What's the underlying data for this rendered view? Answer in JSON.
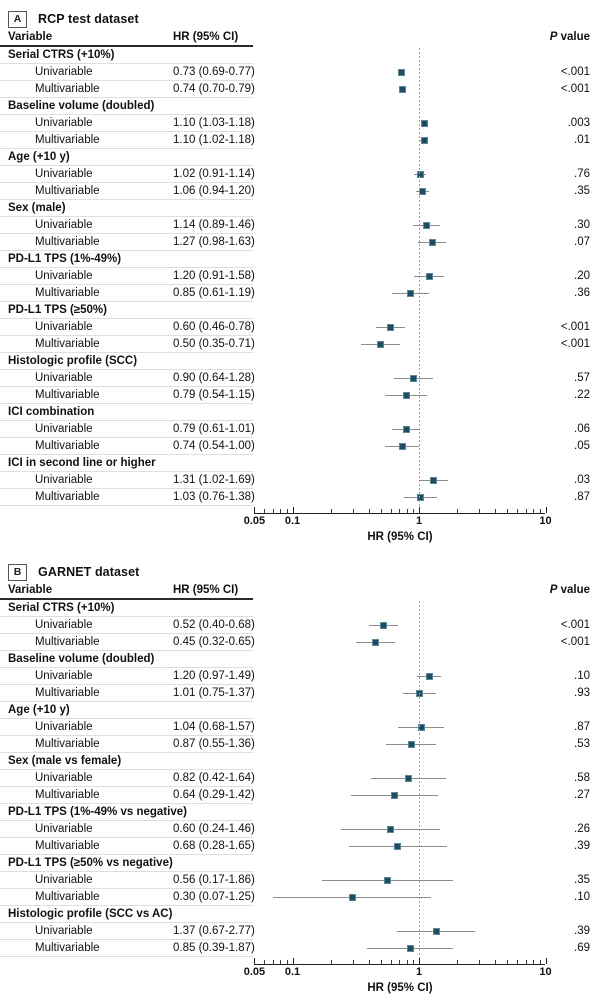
{
  "colors": {
    "marker_fill": "#1d4d60",
    "marker_border": "#5d8799",
    "ci_line": "#8c8c8c",
    "reference_line": "#9a9a9a",
    "header_rule": "#2a2a2a",
    "row_rule": "#dedede"
  },
  "chart_data": [
    {
      "type": "scatter",
      "subtype": "forest-plot",
      "panel_letter": "A",
      "title": "RCP test dataset",
      "columns": {
        "variable": "Variable",
        "hr": "HR (95% CI)",
        "p_italic": "P",
        "p_rest": " value"
      },
      "xlabel": "HR (95% CI)",
      "x_scale": "log",
      "xlim": [
        0.05,
        10
      ],
      "x_ticks": [
        0.05,
        0.1,
        1,
        10
      ],
      "x_tick_labels": [
        "0.05",
        "0.1",
        "1",
        "10"
      ],
      "reference_line": 1,
      "groups": [
        {
          "name": "Serial CTRS (+10%)",
          "rows": [
            {
              "label": "Univariable",
              "hr_text": "0.73 (0.69-0.77)",
              "hr": 0.73,
              "lo": 0.69,
              "hi": 0.77,
              "p": "<.001"
            },
            {
              "label": "Multivariable",
              "hr_text": "0.74 (0.70-0.79)",
              "hr": 0.74,
              "lo": 0.7,
              "hi": 0.79,
              "p": "<.001"
            }
          ]
        },
        {
          "name": "Baseline volume (doubled)",
          "rows": [
            {
              "label": "Univariable",
              "hr_text": "1.10 (1.03-1.18)",
              "hr": 1.1,
              "lo": 1.03,
              "hi": 1.18,
              "p": ".003"
            },
            {
              "label": "Multivariable",
              "hr_text": "1.10 (1.02-1.18)",
              "hr": 1.1,
              "lo": 1.02,
              "hi": 1.18,
              "p": ".01"
            }
          ]
        },
        {
          "name": "Age (+10 y)",
          "rows": [
            {
              "label": "Univariable",
              "hr_text": "1.02 (0.91-1.14)",
              "hr": 1.02,
              "lo": 0.91,
              "hi": 1.14,
              "p": ".76"
            },
            {
              "label": "Multivariable",
              "hr_text": "1.06 (0.94-1.20)",
              "hr": 1.06,
              "lo": 0.94,
              "hi": 1.2,
              "p": ".35"
            }
          ]
        },
        {
          "name": "Sex (male)",
          "rows": [
            {
              "label": "Univariable",
              "hr_text": "1.14 (0.89-1.46)",
              "hr": 1.14,
              "lo": 0.89,
              "hi": 1.46,
              "p": ".30"
            },
            {
              "label": "Multivariable",
              "hr_text": "1.27 (0.98-1.63)",
              "hr": 1.27,
              "lo": 0.98,
              "hi": 1.63,
              "p": ".07"
            }
          ]
        },
        {
          "name": "PD-L1 TPS (1%-49%)",
          "rows": [
            {
              "label": "Univariable",
              "hr_text": "1.20 (0.91-1.58)",
              "hr": 1.2,
              "lo": 0.91,
              "hi": 1.58,
              "p": ".20"
            },
            {
              "label": "Multivariable",
              "hr_text": "0.85 (0.61-1.19)",
              "hr": 0.85,
              "lo": 0.61,
              "hi": 1.19,
              "p": ".36"
            }
          ]
        },
        {
          "name": "PD-L1 TPS (≥50%)",
          "rows": [
            {
              "label": "Univariable",
              "hr_text": "0.60 (0.46-0.78)",
              "hr": 0.6,
              "lo": 0.46,
              "hi": 0.78,
              "p": "<.001"
            },
            {
              "label": "Multivariable",
              "hr_text": "0.50 (0.35-0.71)",
              "hr": 0.5,
              "lo": 0.35,
              "hi": 0.71,
              "p": "<.001"
            }
          ]
        },
        {
          "name": "Histologic profile (SCC)",
          "rows": [
            {
              "label": "Univariable",
              "hr_text": "0.90 (0.64-1.28)",
              "hr": 0.9,
              "lo": 0.64,
              "hi": 1.28,
              "p": ".57"
            },
            {
              "label": "Multivariable",
              "hr_text": "0.79 (0.54-1.15)",
              "hr": 0.79,
              "lo": 0.54,
              "hi": 1.15,
              "p": ".22"
            }
          ]
        },
        {
          "name": "ICI combination",
          "rows": [
            {
              "label": "Univariable",
              "hr_text": "0.79 (0.61-1.01)",
              "hr": 0.79,
              "lo": 0.61,
              "hi": 1.01,
              "p": ".06"
            },
            {
              "label": "Multivariable",
              "hr_text": "0.74 (0.54-1.00)",
              "hr": 0.74,
              "lo": 0.54,
              "hi": 1.0,
              "p": ".05"
            }
          ]
        },
        {
          "name": "ICI in second line or higher",
          "rows": [
            {
              "label": "Univariable",
              "hr_text": "1.31 (1.02-1.69)",
              "hr": 1.31,
              "lo": 1.02,
              "hi": 1.69,
              "p": ".03"
            },
            {
              "label": "Multivariable",
              "hr_text": "1.03 (0.76-1.38)",
              "hr": 1.03,
              "lo": 0.76,
              "hi": 1.38,
              "p": ".87"
            }
          ]
        }
      ]
    },
    {
      "type": "scatter",
      "subtype": "forest-plot",
      "panel_letter": "B",
      "title": "GARNET dataset",
      "columns": {
        "variable": "Variable",
        "hr": "HR (95% CI)",
        "p_italic": "P",
        "p_rest": " value"
      },
      "xlabel": "HR (95% CI)",
      "x_scale": "log",
      "xlim": [
        0.05,
        10
      ],
      "x_ticks": [
        0.05,
        0.1,
        1,
        10
      ],
      "x_tick_labels": [
        "0.05",
        "0.1",
        "1",
        "10"
      ],
      "reference_line": 1,
      "groups": [
        {
          "name": "Serial CTRS (+10%)",
          "rows": [
            {
              "label": "Univariable",
              "hr_text": "0.52 (0.40-0.68)",
              "hr": 0.52,
              "lo": 0.4,
              "hi": 0.68,
              "p": "<.001"
            },
            {
              "label": "Multivariable",
              "hr_text": "0.45 (0.32-0.65)",
              "hr": 0.45,
              "lo": 0.32,
              "hi": 0.65,
              "p": "<.001"
            }
          ]
        },
        {
          "name": "Baseline volume (doubled)",
          "rows": [
            {
              "label": "Univariable",
              "hr_text": "1.20 (0.97-1.49)",
              "hr": 1.2,
              "lo": 0.97,
              "hi": 1.49,
              "p": ".10"
            },
            {
              "label": "Multivariable",
              "hr_text": "1.01 (0.75-1.37)",
              "hr": 1.01,
              "lo": 0.75,
              "hi": 1.37,
              "p": ".93"
            }
          ]
        },
        {
          "name": "Age (+10 y)",
          "rows": [
            {
              "label": "Univariable",
              "hr_text": "1.04 (0.68-1.57)",
              "hr": 1.04,
              "lo": 0.68,
              "hi": 1.57,
              "p": ".87"
            },
            {
              "label": "Multivariable",
              "hr_text": "0.87 (0.55-1.36)",
              "hr": 0.87,
              "lo": 0.55,
              "hi": 1.36,
              "p": ".53"
            }
          ]
        },
        {
          "name": "Sex (male vs female)",
          "rows": [
            {
              "label": "Univariable",
              "hr_text": "0.82 (0.42-1.64)",
              "hr": 0.82,
              "lo": 0.42,
              "hi": 1.64,
              "p": ".58"
            },
            {
              "label": "Multivariable",
              "hr_text": "0.64 (0.29-1.42)",
              "hr": 0.64,
              "lo": 0.29,
              "hi": 1.42,
              "p": ".27"
            }
          ]
        },
        {
          "name": "PD-L1 TPS (1%-49% vs negative)",
          "rows": [
            {
              "label": "Univariable",
              "hr_text": "0.60 (0.24-1.46)",
              "hr": 0.6,
              "lo": 0.24,
              "hi": 1.46,
              "p": ".26"
            },
            {
              "label": "Multivariable",
              "hr_text": "0.68 (0.28-1.65)",
              "hr": 0.68,
              "lo": 0.28,
              "hi": 1.65,
              "p": ".39"
            }
          ]
        },
        {
          "name": "PD-L1 TPS (≥50% vs negative)",
          "rows": [
            {
              "label": "Univariable",
              "hr_text": "0.56 (0.17-1.86)",
              "hr": 0.56,
              "lo": 0.17,
              "hi": 1.86,
              "p": ".35"
            },
            {
              "label": "Multivariable",
              "hr_text": "0.30 (0.07-1.25)",
              "hr": 0.3,
              "lo": 0.07,
              "hi": 1.25,
              "p": ".10"
            }
          ]
        },
        {
          "name": "Histologic profile (SCC vs AC)",
          "rows": [
            {
              "label": "Univariable",
              "hr_text": "1.37 (0.67-2.77)",
              "hr": 1.37,
              "lo": 0.67,
              "hi": 2.77,
              "p": ".39"
            },
            {
              "label": "Multivariable",
              "hr_text": "0.85 (0.39-1.87)",
              "hr": 0.85,
              "lo": 0.39,
              "hi": 1.87,
              "p": ".69"
            }
          ]
        }
      ]
    }
  ]
}
